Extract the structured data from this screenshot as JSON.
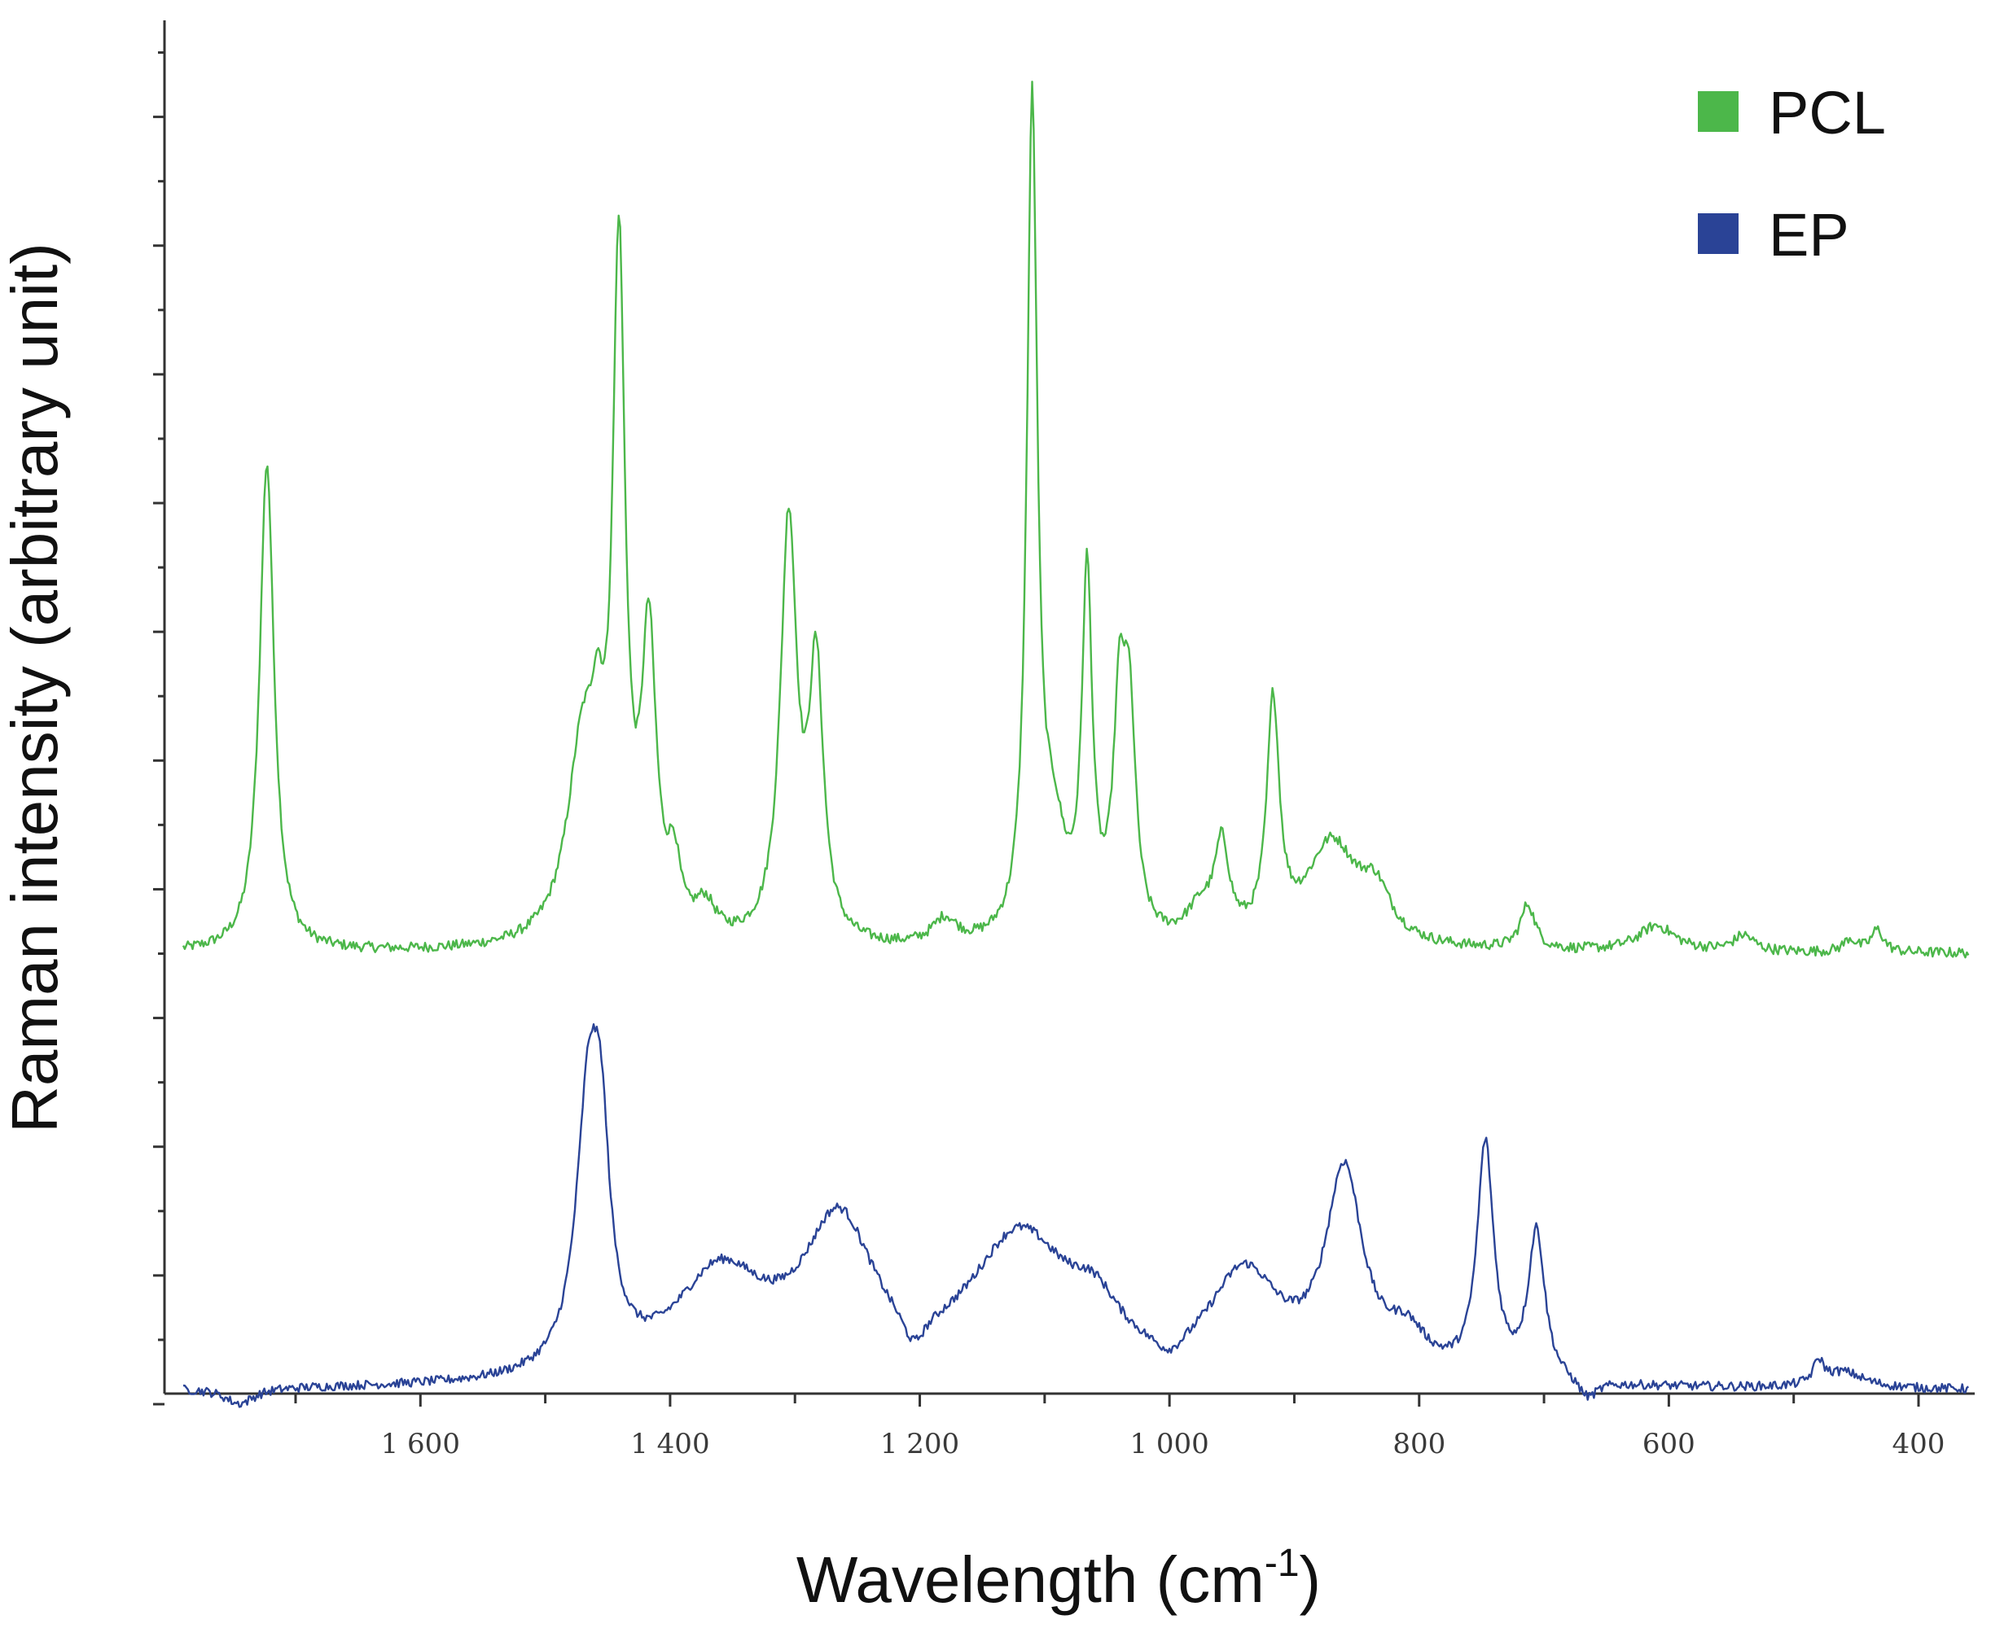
{
  "colors": {
    "pcl": "#4cb74a",
    "ep": "#2a4396",
    "axis": "#333333",
    "background": "#ffffff"
  },
  "chart_data": {
    "type": "line",
    "title": "",
    "xlabel": "Wavelength (cm",
    "xlabel_superscript": "-1",
    "xlabel_suffix": ")",
    "ylabel": "Raman intensity (arbitrary unit)",
    "x_reversed": true,
    "xlim": [
      1805,
      355
    ],
    "ylim": [
      0,
      21.5
    ],
    "x_ticks": [
      {
        "value": 1600,
        "label": "1 600"
      },
      {
        "value": 1400,
        "label": "1 400"
      },
      {
        "value": 1200,
        "label": "1 200"
      },
      {
        "value": 1000,
        "label": "1 000"
      },
      {
        "value": 800,
        "label": "800"
      },
      {
        "value": 600,
        "label": "600"
      },
      {
        "value": 400,
        "label": "400"
      }
    ],
    "x_minor_step": 100,
    "y_major_ticks": [
      0,
      2,
      4,
      6,
      8,
      10,
      12,
      14,
      16,
      18,
      20
    ],
    "y_minor_step": 1,
    "grid": false,
    "legend": {
      "position": "top-right",
      "entries": [
        {
          "label": "PCL",
          "color": "#4cb74a"
        },
        {
          "label": "EP",
          "color": "#2a4396"
        }
      ]
    },
    "series": [
      {
        "name": "PCL",
        "color": "#4cb74a",
        "baseline": 7.0,
        "noise": 0.08,
        "peaks": [
          {
            "x": 1723,
            "height": 7.6,
            "width": 7
          },
          {
            "x": 1470,
            "height": 3.0,
            "width": 15
          },
          {
            "x": 1458,
            "height": 1.6,
            "width": 6
          },
          {
            "x": 1441,
            "height": 10.3,
            "width": 6
          },
          {
            "x": 1417,
            "height": 4.5,
            "width": 7
          },
          {
            "x": 1397,
            "height": 1.0,
            "width": 6
          },
          {
            "x": 1372,
            "height": 0.5,
            "width": 10
          },
          {
            "x": 1305,
            "height": 6.5,
            "width": 8
          },
          {
            "x": 1283,
            "height": 4.1,
            "width": 7
          },
          {
            "x": 1180,
            "height": 0.4,
            "width": 12
          },
          {
            "x": 1110,
            "height": 12.8,
            "width": 5
          },
          {
            "x": 1093,
            "height": 1.5,
            "width": 12
          },
          {
            "x": 1066,
            "height": 5.5,
            "width": 5
          },
          {
            "x": 1040,
            "height": 3.3,
            "width": 6
          },
          {
            "x": 1032,
            "height": 3.1,
            "width": 6
          },
          {
            "x": 975,
            "height": 0.5,
            "width": 14
          },
          {
            "x": 958,
            "height": 1.4,
            "width": 7
          },
          {
            "x": 917,
            "height": 3.6,
            "width": 6
          },
          {
            "x": 870,
            "height": 1.6,
            "width": 25
          },
          {
            "x": 835,
            "height": 0.7,
            "width": 15
          },
          {
            "x": 713,
            "height": 0.7,
            "width": 7
          },
          {
            "x": 610,
            "height": 0.4,
            "width": 18
          },
          {
            "x": 540,
            "height": 0.25,
            "width": 10
          },
          {
            "x": 455,
            "height": 0.2,
            "width": 6
          },
          {
            "x": 433,
            "height": 0.35,
            "width": 6
          }
        ]
      },
      {
        "name": "EP",
        "color": "#2a4396",
        "baseline": 0.2,
        "noise": 0.07,
        "peaks": [
          {
            "x": 1465,
            "height": 4.2,
            "width": 12
          },
          {
            "x": 1455,
            "height": 2.3,
            "width": 8
          },
          {
            "x": 1360,
            "height": 1.6,
            "width": 45
          },
          {
            "x": 1265,
            "height": 2.3,
            "width": 35
          },
          {
            "x": 1120,
            "height": 2.2,
            "width": 50
          },
          {
            "x": 1060,
            "height": 0.7,
            "width": 25
          },
          {
            "x": 940,
            "height": 1.6,
            "width": 35
          },
          {
            "x": 860,
            "height": 3.1,
            "width": 18
          },
          {
            "x": 810,
            "height": 0.6,
            "width": 20
          },
          {
            "x": 747,
            "height": 3.6,
            "width": 8
          },
          {
            "x": 706,
            "height": 2.3,
            "width": 8
          },
          {
            "x": 480,
            "height": 0.35,
            "width": 5
          },
          {
            "x": 460,
            "height": 0.25,
            "width": 20
          }
        ],
        "dips": [
          {
            "x": 1205,
            "depth": 0.55,
            "width": 12
          },
          {
            "x": 1000,
            "depth": 0.3,
            "width": 15
          },
          {
            "x": 665,
            "depth": 0.3,
            "width": 10
          },
          {
            "x": 1745,
            "depth": 0.25,
            "width": 15
          }
        ]
      }
    ]
  }
}
